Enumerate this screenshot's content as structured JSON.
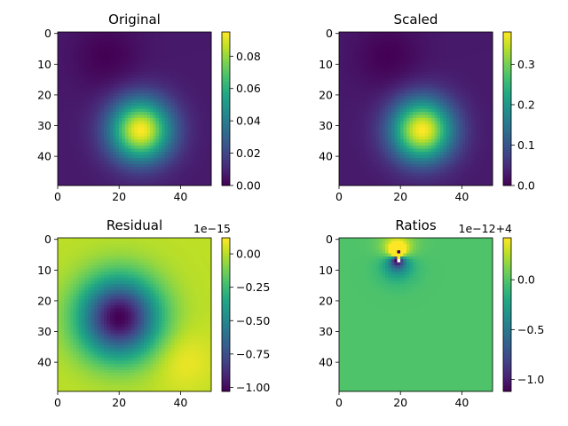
{
  "chart_data": [
    {
      "type": "heatmap",
      "title": "Original",
      "colormap": "viridis",
      "grid_size": [
        50,
        50
      ],
      "field": "gaussian",
      "peak": {
        "x": 27,
        "y": 32,
        "sigma": 7
      },
      "low": {
        "x": 16,
        "y": 8
      },
      "vmin": 0.0,
      "vmax": 0.095,
      "xlim": [
        0,
        50
      ],
      "ylim": [
        50,
        0
      ],
      "xticks": [
        "0",
        "20",
        "40"
      ],
      "yticks": [
        "0",
        "10",
        "20",
        "30",
        "40"
      ],
      "colorbar_ticks": [
        {
          "value": 0.0,
          "label": "0.00"
        },
        {
          "value": 0.02,
          "label": "0.02"
        },
        {
          "value": 0.04,
          "label": "0.04"
        },
        {
          "value": 0.06,
          "label": "0.06"
        },
        {
          "value": 0.08,
          "label": "0.08"
        }
      ],
      "colorbar_offset": ""
    },
    {
      "type": "heatmap",
      "title": "Scaled",
      "colormap": "viridis",
      "grid_size": [
        50,
        50
      ],
      "field": "gaussian",
      "peak": {
        "x": 27,
        "y": 32,
        "sigma": 7
      },
      "low": {
        "x": 16,
        "y": 8
      },
      "vmin": 0.0,
      "vmax": 0.38,
      "xlim": [
        0,
        50
      ],
      "ylim": [
        50,
        0
      ],
      "xticks": [
        "0",
        "20",
        "40"
      ],
      "yticks": [
        "0",
        "10",
        "20",
        "30",
        "40"
      ],
      "colorbar_ticks": [
        {
          "value": 0.0,
          "label": "0.0"
        },
        {
          "value": 0.1,
          "label": "0.1"
        },
        {
          "value": 0.2,
          "label": "0.2"
        },
        {
          "value": 0.3,
          "label": "0.3"
        }
      ],
      "colorbar_offset": ""
    },
    {
      "type": "heatmap",
      "title": "Residual",
      "colormap": "viridis",
      "grid_size": [
        50,
        50
      ],
      "field": "residual",
      "low": {
        "x": 20,
        "y": 26,
        "sigma": 9
      },
      "vmin": -1.03,
      "vmax": 0.12,
      "xlim": [
        0,
        50
      ],
      "ylim": [
        50,
        0
      ],
      "xticks": [
        "0",
        "20",
        "40"
      ],
      "yticks": [
        "0",
        "10",
        "20",
        "30",
        "40"
      ],
      "colorbar_ticks": [
        {
          "value": 0.0,
          "label": "0.00"
        },
        {
          "value": -0.25,
          "label": "−0.25"
        },
        {
          "value": -0.5,
          "label": "−0.50"
        },
        {
          "value": -0.75,
          "label": "−0.75"
        },
        {
          "value": -1.0,
          "label": "−1.00"
        }
      ],
      "colorbar_offset": "1e−15"
    },
    {
      "type": "heatmap",
      "title": "Ratios",
      "colormap": "viridis",
      "grid_size": [
        50,
        50
      ],
      "field": "dipole",
      "dipole": {
        "x": 19,
        "y": 6
      },
      "vmin": -1.12,
      "vmax": 0.42,
      "xlim": [
        0,
        50
      ],
      "ylim": [
        50,
        0
      ],
      "xticks": [
        "0",
        "20",
        "40"
      ],
      "yticks": [
        "0",
        "10",
        "20",
        "30",
        "40"
      ],
      "colorbar_ticks": [
        {
          "value": 0.0,
          "label": "0.0"
        },
        {
          "value": -0.5,
          "label": "−0.5"
        },
        {
          "value": -1.0,
          "label": "−1.0"
        }
      ],
      "colorbar_offset": "1e−12+4"
    }
  ]
}
